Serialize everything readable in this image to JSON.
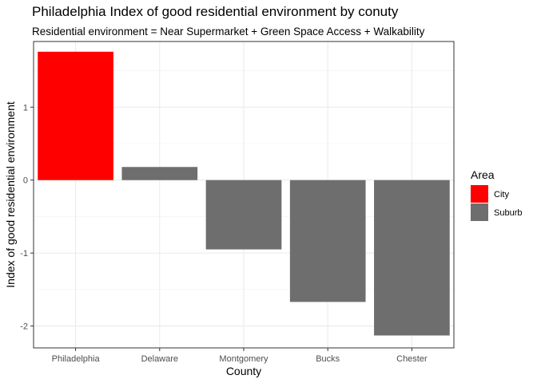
{
  "chart_data": {
    "type": "bar",
    "title": "Philadelphia Index of good residential environment by conuty",
    "subtitle": "Residential environment = Near Supermarket + Green Space Access + Walkability",
    "xlabel": "County",
    "ylabel": "Index of good residential environment",
    "categories": [
      "Philadelphia",
      "Delaware",
      "Montgomery",
      "Bucks",
      "Chester"
    ],
    "values": [
      1.76,
      0.18,
      -0.95,
      -1.67,
      -2.13
    ],
    "groups": [
      "City",
      "Suburb",
      "Suburb",
      "Suburb",
      "Suburb"
    ],
    "ylim": [
      -2.3,
      1.9
    ],
    "yticks": [
      -2,
      -1,
      0,
      1
    ],
    "grid": true,
    "legend": {
      "title": "Area",
      "position": "right",
      "items": [
        {
          "label": "City",
          "color": "#ff0000"
        },
        {
          "label": "Suburb",
          "color": "#6e6e6e"
        }
      ]
    }
  }
}
